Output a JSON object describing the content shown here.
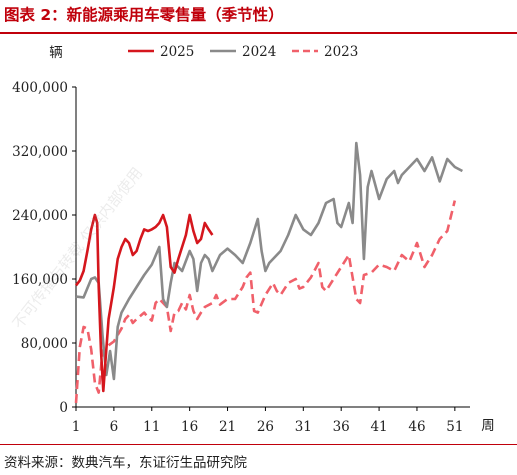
{
  "figure": {
    "title": "图表 2：新能源乘用车零售量（季节性）",
    "source": "资料来源：数典汽车，东证衍生品研究院",
    "watermark": "不可传播与转载 仅供内部使用"
  },
  "chart_data": {
    "type": "line",
    "ylabel": "辆",
    "xlabel": "周",
    "ylim": [
      0,
      400000
    ],
    "xlim": [
      1,
      53
    ],
    "yticks": [
      0,
      80000,
      160000,
      240000,
      320000,
      400000
    ],
    "ytick_labels": [
      "0",
      "80,000",
      "160,000",
      "240,000",
      "320,000",
      "400,000"
    ],
    "xticks": [
      1,
      6,
      11,
      16,
      21,
      26,
      31,
      36,
      41,
      46,
      51
    ],
    "xtick_labels": [
      "1",
      "6",
      "11",
      "16",
      "21",
      "26",
      "31",
      "36",
      "41",
      "46",
      "51"
    ],
    "grid": false,
    "legend_position": "top",
    "series": [
      {
        "name": "2025",
        "color": "#d5161d",
        "style": "solid",
        "values": [
          [
            1,
            152000
          ],
          [
            1.5,
            158000
          ],
          [
            2,
            170000
          ],
          [
            2.5,
            195000
          ],
          [
            3,
            222000
          ],
          [
            3.5,
            240000
          ],
          [
            3.8,
            230000
          ],
          [
            4,
            150000
          ],
          [
            4.3,
            70000
          ],
          [
            4.6,
            20000
          ],
          [
            4.9,
            60000
          ],
          [
            5.3,
            110000
          ],
          [
            6,
            150000
          ],
          [
            6.5,
            185000
          ],
          [
            7,
            200000
          ],
          [
            7.5,
            210000
          ],
          [
            8,
            205000
          ],
          [
            8.5,
            190000
          ],
          [
            9,
            195000
          ],
          [
            9.5,
            210000
          ],
          [
            10,
            222000
          ],
          [
            10.5,
            220000
          ],
          [
            11,
            222000
          ],
          [
            11.5,
            225000
          ],
          [
            12,
            230000
          ],
          [
            12.5,
            240000
          ],
          [
            13,
            225000
          ],
          [
            13.5,
            175000
          ],
          [
            14,
            168000
          ],
          [
            14.5,
            185000
          ],
          [
            15,
            200000
          ],
          [
            15.5,
            215000
          ],
          [
            16,
            240000
          ],
          [
            16.5,
            220000
          ],
          [
            17,
            205000
          ],
          [
            17.5,
            210000
          ],
          [
            18,
            230000
          ],
          [
            18.5,
            222000
          ],
          [
            19,
            215000
          ]
        ]
      },
      {
        "name": "2024",
        "color": "#8a8a8a",
        "style": "solid",
        "values": [
          [
            1,
            138000
          ],
          [
            2,
            137000
          ],
          [
            3,
            160000
          ],
          [
            3.5,
            162000
          ],
          [
            4,
            155000
          ],
          [
            4.5,
            90000
          ],
          [
            5,
            40000
          ],
          [
            5.5,
            70000
          ],
          [
            6,
            35000
          ],
          [
            6.5,
            100000
          ],
          [
            7,
            118000
          ],
          [
            8,
            135000
          ],
          [
            9,
            150000
          ],
          [
            10,
            165000
          ],
          [
            11,
            178000
          ],
          [
            12,
            200000
          ],
          [
            12.5,
            135000
          ],
          [
            13,
            125000
          ],
          [
            13.5,
            155000
          ],
          [
            14,
            180000
          ],
          [
            15,
            170000
          ],
          [
            16,
            195000
          ],
          [
            16.5,
            185000
          ],
          [
            17,
            145000
          ],
          [
            17.5,
            180000
          ],
          [
            18,
            190000
          ],
          [
            18.5,
            185000
          ],
          [
            19,
            170000
          ],
          [
            20,
            190000
          ],
          [
            21,
            198000
          ],
          [
            22,
            190000
          ],
          [
            23,
            180000
          ],
          [
            24,
            205000
          ],
          [
            25,
            235000
          ],
          [
            25.5,
            195000
          ],
          [
            26,
            170000
          ],
          [
            26.5,
            180000
          ],
          [
            27,
            185000
          ],
          [
            28,
            195000
          ],
          [
            29,
            215000
          ],
          [
            30,
            240000
          ],
          [
            31,
            222000
          ],
          [
            32,
            215000
          ],
          [
            33,
            230000
          ],
          [
            34,
            255000
          ],
          [
            35,
            260000
          ],
          [
            35.5,
            230000
          ],
          [
            36,
            225000
          ],
          [
            37,
            255000
          ],
          [
            37.5,
            230000
          ],
          [
            38,
            330000
          ],
          [
            38.5,
            290000
          ],
          [
            39,
            185000
          ],
          [
            39.5,
            275000
          ],
          [
            40,
            295000
          ],
          [
            41,
            260000
          ],
          [
            42,
            285000
          ],
          [
            43,
            295000
          ],
          [
            43.5,
            280000
          ],
          [
            44,
            290000
          ],
          [
            45,
            300000
          ],
          [
            46,
            310000
          ],
          [
            47,
            295000
          ],
          [
            48,
            312000
          ],
          [
            49,
            282000
          ],
          [
            50,
            310000
          ],
          [
            51,
            300000
          ],
          [
            52,
            295000
          ]
        ]
      },
      {
        "name": "2023",
        "color": "#f0606a",
        "style": "dashed",
        "values": [
          [
            1,
            5000
          ],
          [
            1.5,
            75000
          ],
          [
            2,
            100000
          ],
          [
            2.5,
            98000
          ],
          [
            3,
            72000
          ],
          [
            3.5,
            30000
          ],
          [
            4,
            18000
          ],
          [
            4.5,
            70000
          ],
          [
            5,
            75000
          ],
          [
            6,
            82000
          ],
          [
            6.5,
            90000
          ],
          [
            7,
            98000
          ],
          [
            7.5,
            110000
          ],
          [
            8,
            115000
          ],
          [
            8.5,
            105000
          ],
          [
            9,
            110000
          ],
          [
            10,
            118000
          ],
          [
            10.5,
            112000
          ],
          [
            11,
            108000
          ],
          [
            11.5,
            130000
          ],
          [
            12,
            135000
          ],
          [
            13,
            125000
          ],
          [
            13.5,
            95000
          ],
          [
            14,
            118000
          ],
          [
            14.5,
            120000
          ],
          [
            15,
            130000
          ],
          [
            15.5,
            122000
          ],
          [
            16,
            140000
          ],
          [
            16.5,
            120000
          ],
          [
            17,
            110000
          ],
          [
            17.5,
            118000
          ],
          [
            18,
            125000
          ],
          [
            19,
            130000
          ],
          [
            19.5,
            140000
          ],
          [
            20,
            128000
          ],
          [
            21,
            135000
          ],
          [
            22,
            135000
          ],
          [
            23,
            150000
          ],
          [
            23.5,
            162000
          ],
          [
            24,
            168000
          ],
          [
            24.5,
            120000
          ],
          [
            25,
            118000
          ],
          [
            26,
            140000
          ],
          [
            27,
            155000
          ],
          [
            27.5,
            145000
          ],
          [
            28,
            140000
          ],
          [
            29,
            155000
          ],
          [
            30,
            160000
          ],
          [
            30.5,
            148000
          ],
          [
            31,
            150000
          ],
          [
            32,
            162000
          ],
          [
            33,
            180000
          ],
          [
            33.5,
            150000
          ],
          [
            34,
            145000
          ],
          [
            35,
            160000
          ],
          [
            36,
            175000
          ],
          [
            37,
            190000
          ],
          [
            38,
            135000
          ],
          [
            38.5,
            130000
          ],
          [
            39,
            165000
          ],
          [
            40,
            168000
          ],
          [
            41,
            178000
          ],
          [
            42,
            175000
          ],
          [
            43,
            170000
          ],
          [
            44,
            190000
          ],
          [
            45,
            182000
          ],
          [
            46,
            205000
          ],
          [
            47,
            175000
          ],
          [
            48,
            190000
          ],
          [
            49,
            210000
          ],
          [
            50,
            220000
          ],
          [
            51,
            258000
          ]
        ]
      }
    ]
  }
}
